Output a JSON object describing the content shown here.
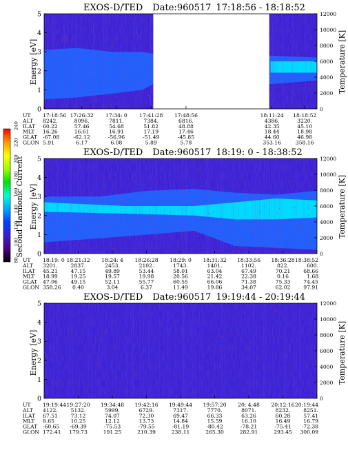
{
  "chart_data": [
    {
      "type": "heatmap",
      "title": "EXOS-D/TED",
      "date_label": "Date:960517",
      "time_range": "17:18:56 - 18:18:52",
      "ylabel_left": "Energy [eV]",
      "ylabel_right": "Temperature [K]",
      "ylim_left": [
        0,
        5
      ],
      "yticks_left": [
        "0",
        "1",
        "2",
        "3",
        "4",
        "5"
      ],
      "ylim_right": [
        0,
        12000
      ],
      "yticks_right": [
        "0",
        "2000",
        "4000",
        "6000",
        "8000",
        "10000",
        "12000"
      ],
      "data_gap": [
        0.4,
        0.825
      ],
      "band": [
        {
          "t": 0.0,
          "lo": 0.5,
          "hi": 3.1
        },
        {
          "t": 0.12,
          "lo": 0.6,
          "hi": 3.2
        },
        {
          "t": 0.25,
          "lo": 0.8,
          "hi": 3.0
        },
        {
          "t": 0.36,
          "lo": 1.0,
          "hi": 3.0
        },
        {
          "t": 0.4,
          "lo": 1.3,
          "hi": 2.9
        },
        {
          "t": 0.83,
          "lo": 1.3,
          "hi": 2.8
        },
        {
          "t": 1.0,
          "lo": 1.5,
          "hi": 2.7
        }
      ],
      "hot_band": [
        {
          "t": 0.83,
          "lo": 1.9,
          "hi": 2.5
        },
        {
          "t": 1.0,
          "lo": 1.9,
          "hi": 2.5
        }
      ],
      "row_labels": [
        "UT",
        "ALT",
        "ILAT",
        "MLT",
        "GLAT",
        "GLON"
      ],
      "columns": [
        {
          "pos": 0.0,
          "values": [
            "17:18:56",
            "8242.",
            "60.22",
            "16.26",
            "-67.08",
            "5.91"
          ]
        },
        {
          "pos": 0.138,
          "values": [
            "17:26:32",
            "8096.",
            "57.46",
            "16.61",
            "-62.12",
            "6.17"
          ]
        },
        {
          "pos": 0.265,
          "values": [
            "17:34: 0",
            "7811.",
            "54.68",
            "16.91",
            "-56.96",
            "6.08"
          ]
        },
        {
          "pos": 0.392,
          "values": [
            "17:41:28",
            "7384.",
            "51.82",
            "17.19",
            "-51.49",
            "5.89"
          ]
        },
        {
          "pos": 0.52,
          "values": [
            "17:48:56",
            "6816.",
            "48.88",
            "17.46",
            "-45.85",
            "5.78"
          ]
        },
        {
          "pos": 0.835,
          "values": [
            "18:11:24",
            "4386.",
            "42.35",
            "18.44",
            "44.60",
            "353.16"
          ]
        },
        {
          "pos": 0.955,
          "values": [
            "18:18:52",
            "3220.",
            "45.10",
            "18.98",
            "46.98",
            "358.16"
          ]
        }
      ]
    },
    {
      "type": "heatmap",
      "title": "EXOS-D/TED",
      "date_label": "Date:960517",
      "time_range": "18:19: 0 - 18:38:52",
      "ylabel_left": "Energy [eV]",
      "ylabel_right": "Temperature [K]",
      "ylim_left": [
        0,
        5
      ],
      "yticks_left": [
        "0",
        "1",
        "2",
        "3",
        "4",
        "5"
      ],
      "ylim_right": [
        0,
        12000
      ],
      "yticks_right": [
        "0",
        "2000",
        "4000",
        "6000",
        "8000",
        "10000",
        "12000"
      ],
      "band": [
        {
          "t": 0.0,
          "lo": 0.6,
          "hi": 3.0
        },
        {
          "t": 0.2,
          "lo": 0.8,
          "hi": 3.0
        },
        {
          "t": 0.38,
          "lo": 1.0,
          "hi": 3.3
        },
        {
          "t": 0.55,
          "lo": 1.2,
          "hi": 3.4
        },
        {
          "t": 0.7,
          "lo": 0.4,
          "hi": 3.2
        },
        {
          "t": 0.85,
          "lo": 0.3,
          "hi": 3.1
        },
        {
          "t": 1.0,
          "lo": 0.2,
          "hi": 3.3
        }
      ],
      "hot_band": [
        {
          "t": 0.0,
          "lo": 2.2,
          "hi": 2.7
        },
        {
          "t": 0.3,
          "lo": 2.1,
          "hi": 2.5
        },
        {
          "t": 0.55,
          "lo": 2.0,
          "hi": 2.5
        },
        {
          "t": 0.7,
          "lo": 1.8,
          "hi": 2.7
        },
        {
          "t": 0.85,
          "lo": 1.8,
          "hi": 2.9
        },
        {
          "t": 1.0,
          "lo": 1.9,
          "hi": 2.8
        }
      ],
      "row_labels": [
        "UT",
        "ALT",
        "ILAT",
        "MLT",
        "GLAT",
        "GLON"
      ],
      "columns": [
        {
          "pos": 0.0,
          "values": [
            "18:19: 0",
            "3201.",
            "45.21",
            "18.99",
            "47.06",
            "358.26"
          ]
        },
        {
          "pos": 0.125,
          "values": [
            "18:21:32",
            "2837.",
            "47.15",
            "19.25",
            "49.15",
            "0.40"
          ]
        },
        {
          "pos": 0.25,
          "values": [
            "18:24: 4",
            "2453.",
            "49.89",
            "19.57",
            "52.11",
            "3.04"
          ]
        },
        {
          "pos": 0.375,
          "values": [
            "18:26:28",
            "2102.",
            "53.44",
            "19.98",
            "55.77",
            "6.37"
          ]
        },
        {
          "pos": 0.5,
          "values": [
            "18:29: 0",
            "1743.",
            "58.01",
            "20.56",
            "60.55",
            "11.49"
          ]
        },
        {
          "pos": 0.625,
          "values": [
            "18:31:32",
            "1401.",
            "63.04",
            "21.42",
            "66.06",
            "19.86"
          ]
        },
        {
          "pos": 0.75,
          "values": [
            "18:33:56",
            "1102.",
            "67.49",
            "22.38",
            "71.38",
            "34.07"
          ]
        },
        {
          "pos": 0.875,
          "values": [
            "18:36:28",
            "822.",
            "70.21",
            "0.16",
            "75.33",
            "62.02"
          ]
        },
        {
          "pos": 1.0,
          "values": [
            "18:38:52",
            "600.",
            "68.66",
            "1.68",
            "74.45",
            "97.91"
          ]
        }
      ]
    },
    {
      "type": "heatmap",
      "title": "EXOS-D/TED",
      "date_label": "Date:960517",
      "time_range": "19:19:44 - 20:19:44",
      "ylabel_left": "Energy [eV]",
      "ylabel_right": "Temperature [K]",
      "ylim_left": [
        0,
        5
      ],
      "yticks_left": [
        "0",
        "1",
        "2",
        "3",
        "4",
        "5"
      ],
      "ylim_right": [
        0,
        12000
      ],
      "yticks_right": [
        "0",
        "2000",
        "4000",
        "6000",
        "8000",
        "10000",
        "12000"
      ],
      "band": [],
      "hot_band": [],
      "row_labels": [
        "UT",
        "ALT",
        "ILAT",
        "MLT",
        "GLAT",
        "GLON"
      ],
      "columns": [
        {
          "pos": 0.0,
          "values": [
            "19:19:44",
            "4122.",
            "67.51",
            "8.65",
            "-60.65",
            "172.41"
          ]
        },
        {
          "pos": 0.125,
          "values": [
            "19:27:20",
            "5132.",
            "73.12",
            "10.25",
            "-69.39",
            "179.73"
          ]
        },
        {
          "pos": 0.25,
          "values": [
            "19:34:48",
            "5999.",
            "74.07",
            "12.12",
            "-75.53",
            "191.25"
          ]
        },
        {
          "pos": 0.375,
          "values": [
            "19:42:16",
            "6729.",
            "72.30",
            "13.73",
            "-79.55",
            "210.39"
          ]
        },
        {
          "pos": 0.5,
          "values": [
            "19:49:44",
            "7317.",
            "69.47",
            "14.84",
            "-81.19",
            "238.11"
          ]
        },
        {
          "pos": 0.625,
          "values": [
            "19:57:20",
            "7770.",
            "66.33",
            "15.59",
            "-80.42",
            "265.30"
          ]
        },
        {
          "pos": 0.75,
          "values": [
            "20: 4:48",
            "8071.",
            "63.26",
            "16.10",
            "-78.21",
            "282.91"
          ]
        },
        {
          "pos": 0.875,
          "values": [
            "20:12:16",
            "8232.",
            "60.28",
            "16.49",
            "-75.41",
            "293.45"
          ]
        },
        {
          "pos": 1.0,
          "values": [
            "20:19:44",
            "8251.",
            "57.41",
            "16.79",
            "-72.38",
            "300.09"
          ]
        }
      ]
    }
  ],
  "colorbar": {
    "label": "Second Harmonic Current",
    "ticks": [
      "80",
      "100",
      "120",
      "140",
      "160",
      "180",
      "200",
      "220",
      "240"
    ],
    "colors": [
      "#000000",
      "#4b0082",
      "#3a1fd6",
      "#0040ff",
      "#00a8ff",
      "#00ffd0",
      "#00e000",
      "#a0ff00",
      "#ffff00",
      "#ff9900",
      "#ff0000"
    ]
  },
  "colors": {
    "background": "#3a1fd6",
    "band": "#1f6bff",
    "hot": "#00e8ff",
    "gap": "#ffffff",
    "speckle": "#c03040"
  }
}
